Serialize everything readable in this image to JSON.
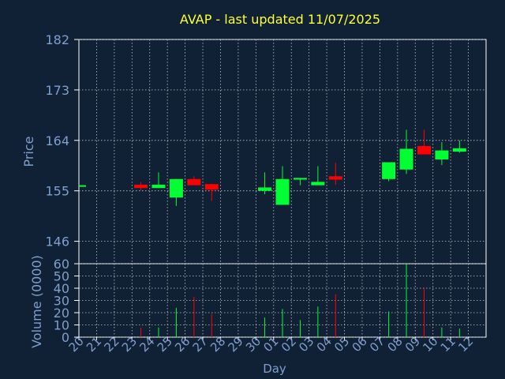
{
  "title": "AVAP - last updated 11/07/2025",
  "colors": {
    "background": "#102035",
    "title": "#ffff33",
    "axis_text": "#7f9fcf",
    "frame": "#ffffff",
    "grid": "#c8c8c8",
    "up": "#00ff33",
    "down": "#ff0000"
  },
  "chart_data": [
    {
      "type": "candlestick",
      "ylabel": "Price",
      "ylim": [
        142,
        182
      ],
      "yticks": [
        146,
        155,
        164,
        173,
        182
      ],
      "grid": true,
      "categories": [
        "20",
        "21",
        "22",
        "23",
        "24",
        "25",
        "26",
        "27",
        "28",
        "29",
        "30",
        "01",
        "02",
        "03",
        "04",
        "05",
        "06",
        "07",
        "08",
        "09",
        "10",
        "11",
        "12"
      ],
      "candles": [
        {
          "x": "20",
          "open": 156.0,
          "close": 156.0,
          "high": 156.0,
          "low": 156.0,
          "dir": "up"
        },
        {
          "x": "23",
          "open": 156.1,
          "close": 155.5,
          "high": 156.6,
          "low": 155.1,
          "dir": "down"
        },
        {
          "x": "24",
          "open": 155.5,
          "close": 156.1,
          "high": 158.3,
          "low": 155.5,
          "dir": "up"
        },
        {
          "x": "25",
          "open": 153.8,
          "close": 157.1,
          "high": 157.1,
          "low": 152.3,
          "dir": "up"
        },
        {
          "x": "26",
          "open": 157.1,
          "close": 156.0,
          "high": 157.6,
          "low": 156.0,
          "dir": "down"
        },
        {
          "x": "27",
          "open": 156.2,
          "close": 155.2,
          "high": 156.3,
          "low": 153.2,
          "dir": "down"
        },
        {
          "x": "30",
          "open": 155.0,
          "close": 155.6,
          "high": 158.3,
          "low": 154.4,
          "dir": "up"
        },
        {
          "x": "01",
          "open": 152.5,
          "close": 157.1,
          "high": 159.4,
          "low": 152.5,
          "dir": "up"
        },
        {
          "x": "02",
          "open": 157.0,
          "close": 157.3,
          "high": 157.3,
          "low": 156.0,
          "dir": "up"
        },
        {
          "x": "03",
          "open": 156.0,
          "close": 156.6,
          "high": 159.4,
          "low": 156.0,
          "dir": "up"
        },
        {
          "x": "04",
          "open": 157.6,
          "close": 157.0,
          "high": 160.0,
          "low": 156.1,
          "dir": "down"
        },
        {
          "x": "07",
          "open": 157.1,
          "close": 160.1,
          "high": 160.1,
          "low": 156.7,
          "dir": "up"
        },
        {
          "x": "08",
          "open": 158.8,
          "close": 162.5,
          "high": 165.9,
          "low": 158.0,
          "dir": "up"
        },
        {
          "x": "09",
          "open": 163.0,
          "close": 161.5,
          "high": 165.9,
          "low": 161.5,
          "dir": "down"
        },
        {
          "x": "10",
          "open": 160.6,
          "close": 162.2,
          "high": 163.7,
          "low": 159.6,
          "dir": "up"
        },
        {
          "x": "11",
          "open": 162.0,
          "close": 162.6,
          "high": 164.0,
          "low": 161.8,
          "dir": "up"
        }
      ]
    },
    {
      "type": "bar",
      "ylabel": "Volume (0000)",
      "xlabel": "Day",
      "ylim": [
        0,
        60
      ],
      "yticks": [
        0,
        10,
        20,
        30,
        40,
        50,
        60
      ],
      "grid": true,
      "bars": [
        {
          "x": "23",
          "value": 8,
          "dir": "down"
        },
        {
          "x": "24",
          "value": 8,
          "dir": "up"
        },
        {
          "x": "25",
          "value": 24,
          "dir": "up"
        },
        {
          "x": "26",
          "value": 33,
          "dir": "down"
        },
        {
          "x": "27",
          "value": 19,
          "dir": "down"
        },
        {
          "x": "30",
          "value": 16,
          "dir": "up"
        },
        {
          "x": "01",
          "value": 23,
          "dir": "up"
        },
        {
          "x": "02",
          "value": 14,
          "dir": "up"
        },
        {
          "x": "03",
          "value": 25,
          "dir": "up"
        },
        {
          "x": "04",
          "value": 35,
          "dir": "down"
        },
        {
          "x": "07",
          "value": 21,
          "dir": "up"
        },
        {
          "x": "08",
          "value": 60,
          "dir": "up"
        },
        {
          "x": "09",
          "value": 40,
          "dir": "down"
        },
        {
          "x": "10",
          "value": 8,
          "dir": "up"
        },
        {
          "x": "11",
          "value": 7,
          "dir": "up"
        }
      ]
    }
  ]
}
